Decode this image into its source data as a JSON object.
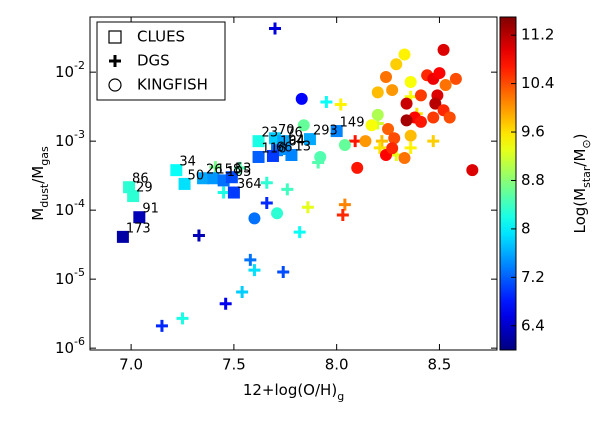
{
  "chart_data": {
    "type": "scatter",
    "xlabel": [
      {
        "text": "12+log(O/H)"
      },
      {
        "text": "g",
        "sub": true
      }
    ],
    "ylabel": [
      {
        "text": "M"
      },
      {
        "text": "dust",
        "sub": true
      },
      {
        "text": "/M"
      },
      {
        "text": "gas",
        "sub": true
      }
    ],
    "xlim": [
      6.8,
      8.78
    ],
    "ylim": [
      9.4e-07,
      0.063
    ],
    "yscale": "log",
    "xticks": [
      {
        "value": 7,
        "label": "7.0"
      },
      {
        "value": 7.5,
        "label": "7.5"
      },
      {
        "value": 8,
        "label": "8.0"
      },
      {
        "value": 8.5,
        "label": "8.5"
      }
    ],
    "yticks": [
      {
        "value": 1e-06,
        "label": "10",
        "exponent": "-6"
      },
      {
        "value": 1e-05,
        "label": "10",
        "exponent": "-5"
      },
      {
        "value": 0.0001,
        "label": "10",
        "exponent": "-4"
      },
      {
        "value": 0.001,
        "label": "10",
        "exponent": "-3"
      },
      {
        "value": 0.01,
        "label": "10",
        "exponent": "-2"
      }
    ],
    "legend": "upper left",
    "colormap": "jet",
    "colorbar": {
      "label": [
        {
          "text": "Log(M"
        },
        {
          "text": "star",
          "sub": true
        },
        {
          "text": "/M"
        },
        {
          "text": "⊙",
          "sub": true
        },
        {
          "text": ")"
        }
      ],
      "clim": [
        6.0,
        11.5
      ],
      "ticks": [
        6.4,
        7.2,
        8.0,
        8.8,
        9.6,
        10.4,
        11.2
      ]
    },
    "series": [
      {
        "name": "CLUES",
        "marker": "square",
        "x": [
          6.99,
          7.01,
          6.96,
          7.04,
          7.22,
          7.26,
          7.35,
          7.4,
          7.45,
          7.49,
          7.5,
          7.62,
          7.7,
          7.74,
          7.71,
          7.75,
          7.62,
          7.69,
          7.78,
          7.87,
          8.0
        ],
        "y": [
          0.000215,
          0.00016,
          4.1e-05,
          7.9e-05,
          0.00038,
          0.00024,
          0.00029,
          0.00029,
          0.00027,
          0.0003,
          0.00018,
          0.001,
          0.0011,
          0.001,
          0.00074,
          0.00077,
          0.00059,
          0.00061,
          0.00063,
          0.00107,
          0.0014
        ],
        "c": [
          8.3,
          8.3,
          6.2,
          6.3,
          8.1,
          7.9,
          7.6,
          7.5,
          7.3,
          7.1,
          7.0,
          8.2,
          7.8,
          7.6,
          7.3,
          7.5,
          7.2,
          7.0,
          7.4,
          7.6,
          7.4
        ],
        "labels": [
          "86",
          "29",
          "173",
          "91",
          "34",
          "50",
          "26",
          "158",
          "105",
          "53",
          "364",
          "23",
          "70",
          "76",
          "164",
          "94",
          "116",
          "66",
          "13",
          "293",
          "149"
        ]
      },
      {
        "name": "DGS",
        "marker": "plus",
        "x": [
          7.7,
          7.95,
          8.02,
          8.09,
          8.22,
          8.21,
          8.36,
          8.29,
          7.91,
          7.53,
          7.41,
          7.45,
          7.66,
          7.76,
          7.86,
          8.04,
          8.03,
          7.82,
          7.33,
          7.66,
          7.58,
          7.6,
          7.74,
          7.54,
          7.46,
          7.25,
          7.15,
          8.2,
          8.39,
          8.36,
          8.47
        ],
        "y": [
          0.043,
          0.0037,
          0.0034,
          0.001,
          0.001,
          0.0008,
          0.0008,
          0.00063,
          0.00049,
          0.00041,
          0.00042,
          0.00018,
          0.00025,
          0.0002,
          0.00011,
          0.00012,
          8.5e-05,
          4.8e-05,
          4.3e-05,
          0.000127,
          1.9e-05,
          1.35e-05,
          1.27e-05,
          6.5e-06,
          4.4e-06,
          2.7e-06,
          2.1e-06,
          0.0018,
          0.0025,
          0.0044,
          0.001
        ],
        "c": [
          6.5,
          8.1,
          9.5,
          10.7,
          9.8,
          9.6,
          9.5,
          9.3,
          8.5,
          8.5,
          8.7,
          8.2,
          8.3,
          8.4,
          9.3,
          10.1,
          10.6,
          8.1,
          6.3,
          6.9,
          7.3,
          7.9,
          7.1,
          7.8,
          6.6,
          8.2,
          6.9,
          9.2,
          9.6,
          9.4,
          9.7
        ]
      },
      {
        "name": "KINGFISH",
        "marker": "circle",
        "x": [
          7.83,
          7.84,
          7.6,
          7.71,
          7.92,
          8.1,
          8.52,
          8.33,
          8.29,
          8.44,
          8.47,
          8.5,
          8.58,
          8.53,
          8.24,
          8.2,
          8.27,
          8.36,
          8.41,
          8.49,
          8.48,
          8.52,
          8.34,
          8.38,
          8.34,
          8.41,
          8.47,
          8.55,
          8.2,
          8.17,
          8.25,
          8.28,
          8.36,
          8.14,
          8.24,
          8.33,
          8.66,
          8.27,
          8.04
        ],
        "y": [
          0.0041,
          0.0017,
          7.6e-05,
          9e-05,
          0.00059,
          0.00041,
          0.021,
          0.018,
          0.013,
          0.009,
          0.008,
          0.0097,
          0.008,
          0.0065,
          0.0085,
          0.0051,
          0.0055,
          0.0072,
          0.0046,
          0.0046,
          0.0035,
          0.0028,
          0.0035,
          0.0022,
          0.002,
          0.0019,
          0.0022,
          0.0022,
          0.0024,
          0.0017,
          0.0015,
          0.0011,
          0.0012,
          0.001,
          0.00063,
          0.00057,
          0.00038,
          0.00079,
          0.00088
        ],
        "c": [
          6.7,
          8.6,
          7.3,
          8.3,
          8.5,
          10.7,
          11.0,
          9.5,
          9.7,
          10.6,
          10.9,
          10.8,
          10.4,
          10.2,
          10.2,
          9.8,
          10.0,
          9.4,
          10.5,
          11.0,
          11.2,
          10.6,
          11.1,
          10.8,
          11.3,
          10.7,
          10.5,
          10.4,
          9.0,
          9.4,
          10.3,
          10.4,
          9.8,
          10.0,
          10.8,
          10.2,
          11.0,
          10.6,
          8.6
        ]
      }
    ]
  }
}
